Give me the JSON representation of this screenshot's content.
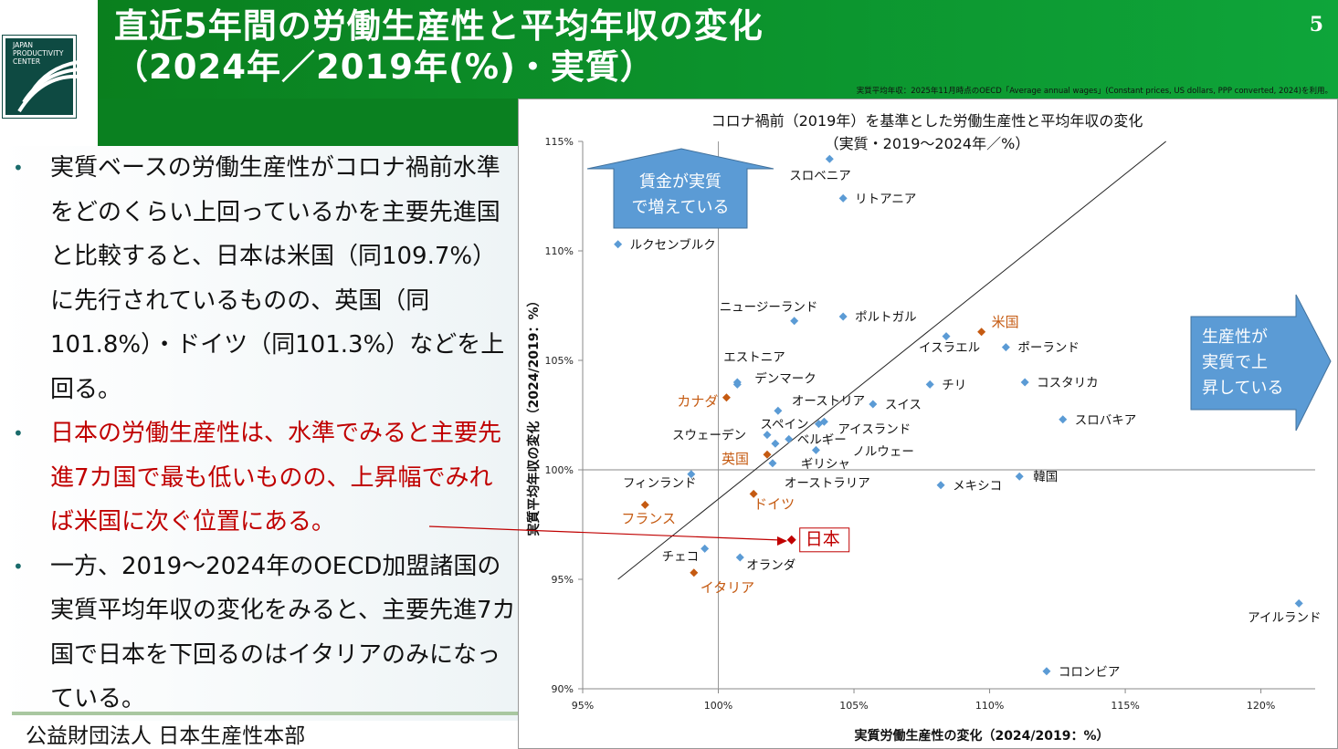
{
  "header": {
    "title_line1": "直近5年間の労働生産性と平均年収の変化",
    "title_line2": "（2024年／2019年(%)・実質）",
    "page_number": "5",
    "source_note": "実質平均年収：2025年11月時点のOECD「Average annual wages」(Constant prices, US dollars, PPP converted, 2024)を利用。"
  },
  "logo": {
    "text": [
      "JAPAN",
      "PRODUCTIVITY",
      "CENTER"
    ]
  },
  "bullets": [
    {
      "text": "実質ベースの労働生産性がコロナ禍前水準をどのくらい上回っているかを主要先進国と比較すると、日本は米国（同109.7%）に先行されているものの、英国（同101.8%）・ドイツ（同101.3%）などを上回る。",
      "highlight": false
    },
    {
      "text": "日本の労働生産性は、水準でみると主要先進7カ国で最も低いものの、上昇幅でみれば米国に次ぐ位置にある。",
      "highlight": true
    },
    {
      "text": "一方、2019～2024年のOECD加盟諸国の実質平均年収の変化をみると、主要先進7カ国で日本を下回るのはイタリアのみになっている。",
      "highlight": false
    }
  ],
  "bullet_marker": "•",
  "footer": "公益財団法人 日本生産性本部",
  "colors": {
    "other": "#5B9BD5",
    "g7": "#C55A11",
    "japan": "#C00000",
    "callout": "#5B9BD5"
  },
  "chart_data": {
    "type": "scatter",
    "title": "コロナ禍前（2019年）を基準とした労働生産性と平均年収の変化",
    "subtitle": "（実質・2019～2024年／%）",
    "xlabel": "実質労働生産性の変化（2024/2019：%）",
    "ylabel": "実質平均年収の変化（2024/2019：%）",
    "xlim": [
      95,
      122
    ],
    "ylim": [
      90,
      115
    ],
    "xticks": [
      "95%",
      "100%",
      "105%",
      "110%",
      "115%",
      "120%"
    ],
    "yticks": [
      "90%",
      "95%",
      "100%",
      "105%",
      "110%",
      "115%"
    ],
    "reference_line": [
      [
        96.3,
        95.0
      ],
      [
        116.5,
        115.0
      ]
    ],
    "callout_up": "賃金が実質で増えている",
    "callout_right": "生産性が実質で上昇している",
    "points": [
      {
        "name": "スロベニア",
        "x": 104.1,
        "y": 114.2,
        "group": "other"
      },
      {
        "name": "リトアニア",
        "x": 104.6,
        "y": 112.4,
        "group": "other"
      },
      {
        "name": "ルクセンブルク",
        "x": 96.3,
        "y": 110.3,
        "group": "other"
      },
      {
        "name": "ニュージーランド",
        "x": 102.8,
        "y": 106.8,
        "group": "other"
      },
      {
        "name": "ポルトガル",
        "x": 104.6,
        "y": 107.0,
        "group": "other"
      },
      {
        "name": "イスラエル",
        "x": 108.4,
        "y": 106.1,
        "group": "other"
      },
      {
        "name": "米国",
        "x": 109.7,
        "y": 106.3,
        "group": "g7"
      },
      {
        "name": "ポーランド",
        "x": 110.6,
        "y": 105.6,
        "group": "other"
      },
      {
        "name": "エストニア",
        "x": 100.7,
        "y": 104.0,
        "group": "other"
      },
      {
        "name": "デンマーク",
        "x": 100.7,
        "y": 103.9,
        "group": "other"
      },
      {
        "name": "カナダ",
        "x": 100.3,
        "y": 103.3,
        "group": "g7"
      },
      {
        "name": "チリ",
        "x": 107.8,
        "y": 103.9,
        "group": "other"
      },
      {
        "name": "コスタリカ",
        "x": 111.3,
        "y": 104.0,
        "group": "other"
      },
      {
        "name": "オーストリア",
        "x": 102.2,
        "y": 102.7,
        "group": "other"
      },
      {
        "name": "スイス",
        "x": 105.7,
        "y": 103.0,
        "group": "other"
      },
      {
        "name": "スロバキア",
        "x": 112.7,
        "y": 102.3,
        "group": "other"
      },
      {
        "name": "スペイン",
        "x": 103.7,
        "y": 102.1,
        "group": "other"
      },
      {
        "name": "アイスランド",
        "x": 103.9,
        "y": 102.2,
        "group": "other"
      },
      {
        "name": "スウェーデン",
        "x": 101.8,
        "y": 101.6,
        "group": "other"
      },
      {
        "name": "ベルギー",
        "x": 102.6,
        "y": 101.4,
        "group": "other"
      },
      {
        "name": "ギリシャ",
        "x": 102.1,
        "y": 101.2,
        "group": "other"
      },
      {
        "name": "ノルウェー",
        "x": 103.6,
        "y": 100.9,
        "group": "other"
      },
      {
        "name": "英国",
        "x": 101.8,
        "y": 100.7,
        "group": "g7"
      },
      {
        "name": "オーストラリア",
        "x": 102.0,
        "y": 100.3,
        "group": "other"
      },
      {
        "name": "フィンランド",
        "x": 99.0,
        "y": 99.8,
        "group": "other"
      },
      {
        "name": "メキシコ",
        "x": 108.2,
        "y": 99.3,
        "group": "other"
      },
      {
        "name": "韓国",
        "x": 111.1,
        "y": 99.7,
        "group": "other"
      },
      {
        "name": "ドイツ",
        "x": 101.3,
        "y": 98.9,
        "group": "g7"
      },
      {
        "name": "フランス",
        "x": 97.3,
        "y": 98.4,
        "group": "g7"
      },
      {
        "name": "日本",
        "x": 102.7,
        "y": 96.8,
        "group": "japan"
      },
      {
        "name": "チェコ",
        "x": 99.5,
        "y": 96.4,
        "group": "other"
      },
      {
        "name": "オランダ",
        "x": 100.8,
        "y": 96.0,
        "group": "other"
      },
      {
        "name": "イタリア",
        "x": 99.1,
        "y": 95.3,
        "group": "g7"
      },
      {
        "name": "アイルランド",
        "x": 121.4,
        "y": 93.9,
        "group": "other"
      },
      {
        "name": "コロンビア",
        "x": 112.1,
        "y": 90.8,
        "group": "other"
      }
    ]
  }
}
